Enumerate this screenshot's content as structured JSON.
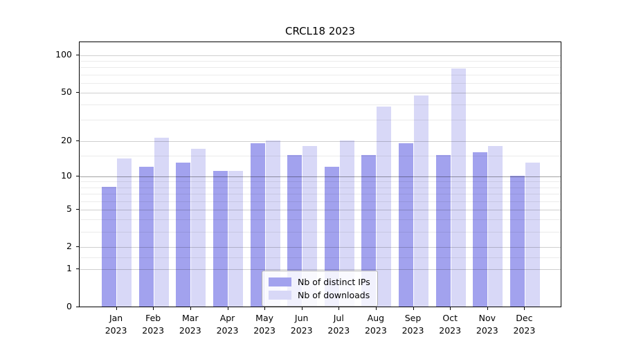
{
  "title": "CRCL18 2023",
  "chart_data": {
    "type": "bar",
    "title": "CRCL18 2023",
    "categories": [
      "Jan",
      "Feb",
      "Mar",
      "Apr",
      "May",
      "Jun",
      "Jul",
      "Aug",
      "Sep",
      "Oct",
      "Nov",
      "Dec"
    ],
    "x_tick_year": "2023",
    "series": [
      {
        "name": "Nb of distinct IPs",
        "color": "#a2a2ee",
        "values": [
          8,
          12,
          13,
          11,
          19,
          15,
          12,
          15,
          19,
          15,
          16,
          10
        ]
      },
      {
        "name": "Nb of downloads",
        "color": "#d8d8f7",
        "values": [
          14,
          21,
          17,
          11,
          20,
          18,
          20,
          38,
          47,
          77,
          18,
          13
        ]
      }
    ],
    "y_scale": "log1p",
    "y_ticks": [
      0,
      1,
      2,
      5,
      10,
      20,
      50,
      100
    ],
    "y_minor_ticks": [
      1.5,
      3,
      4,
      6,
      7,
      8,
      9,
      15,
      30,
      40,
      60,
      70,
      80,
      90
    ],
    "emphasized_gridline": 10,
    "ylim": [
      0,
      127
    ],
    "grid": true,
    "legend_position": "lower center",
    "xlabel": "",
    "ylabel": ""
  }
}
